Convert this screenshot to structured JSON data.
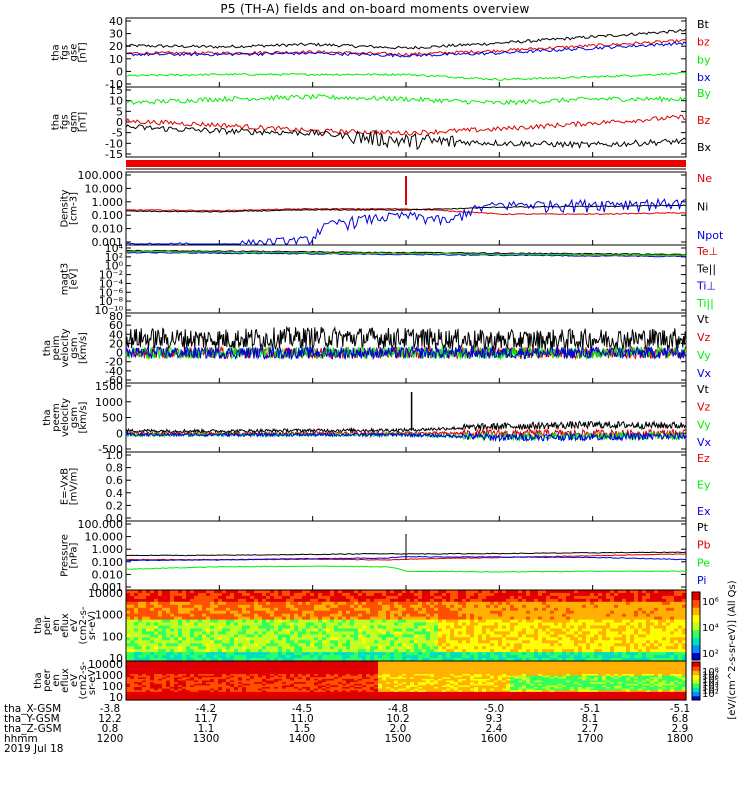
{
  "title": "P5 (TH-A) fields and on-board moments overview",
  "colors": {
    "black": "#000000",
    "red": "#dd0000",
    "green": "#00ee00",
    "blue": "#0000dd",
    "redflag": "#ee0000"
  },
  "chart_data": [
    {
      "type": "line",
      "id": "fgs-gse",
      "ylabel": [
        "tha",
        "fgs",
        "gse",
        "[nT]"
      ],
      "yticks": [
        "40",
        "30",
        "20",
        "10",
        "0",
        "-10"
      ],
      "ylim": [
        -13,
        42
      ],
      "x": [
        1200,
        1300,
        1400,
        1500,
        1600,
        1700,
        1800
      ],
      "series": [
        {
          "name": "Bt",
          "color": "black",
          "values": [
            20,
            19,
            21,
            18,
            22,
            27,
            32
          ]
        },
        {
          "name": "bz",
          "color": "red",
          "values": [
            14,
            14,
            15,
            13,
            16,
            20,
            24
          ]
        },
        {
          "name": "by",
          "color": "green",
          "values": [
            -4,
            -3,
            -3,
            -3,
            -7,
            -5,
            -2
          ]
        },
        {
          "name": "bx",
          "color": "blue",
          "values": [
            13,
            13,
            14,
            12,
            14,
            18,
            22
          ]
        }
      ]
    },
    {
      "type": "line",
      "id": "fgs-gsm",
      "ylabel": [
        "tha",
        "fgs",
        "gsm",
        "[nT]"
      ],
      "yticks": [
        "15",
        "10",
        "5",
        "0",
        "-5",
        "-10",
        "-15"
      ],
      "ylim": [
        -18,
        17
      ],
      "x": [
        1200,
        1300,
        1400,
        1500,
        1600,
        1700,
        1800
      ],
      "series": [
        {
          "name": "By",
          "color": "green",
          "values": [
            9,
            11,
            12,
            11,
            9,
            11,
            11
          ]
        },
        {
          "name": "Bz",
          "color": "red",
          "values": [
            0,
            -2,
            -5,
            -6,
            -4,
            -1,
            2
          ]
        },
        {
          "name": "Bx",
          "color": "black",
          "values": [
            -3,
            -5,
            -6,
            -10,
            -11,
            -12,
            -10
          ]
        }
      ]
    },
    {
      "type": "line",
      "id": "density",
      "ylog": true,
      "ylabel": [
        "Density",
        "[cm-3]"
      ],
      "yticks": [
        "100.000",
        "10.000",
        "1.000",
        "0.100",
        "0.010",
        "0.001"
      ],
      "x": [
        1200,
        1300,
        1400,
        1500,
        1550,
        1600,
        1700,
        1800
      ],
      "series": [
        {
          "name": "Ne",
          "color": "red",
          "values": [
            0.25,
            0.22,
            0.3,
            0.3,
            0.2,
            0.12,
            0.12,
            0.15
          ]
        },
        {
          "name": "Ni",
          "color": "black",
          "values": [
            0.2,
            0.18,
            0.25,
            0.25,
            0.3,
            0.4,
            0.45,
            0.55
          ]
        },
        {
          "name": "Npot",
          "color": "blue",
          "values": [
            0.0005,
            0.0005,
            0.0015,
            0.1,
            0.03,
            0.6,
            0.8,
            0.9
          ]
        }
      ]
    },
    {
      "type": "line",
      "id": "temperature",
      "ylog": true,
      "ylabel": [
        "magt3",
        "[eV]"
      ],
      "yticks": [
        "10⁴",
        "10²",
        "10⁰",
        "10⁻²",
        "10⁻⁴",
        "10⁻⁶",
        "10⁻⁸",
        "10⁻¹⁰"
      ],
      "series": [
        {
          "name": "Te⊥",
          "color": "red"
        },
        {
          "name": "Te||",
          "color": "black"
        },
        {
          "name": "Ti⊥",
          "color": "blue"
        },
        {
          "name": "Ti||",
          "color": "green"
        }
      ]
    },
    {
      "type": "line",
      "id": "peim-velocity",
      "ylabel": [
        "tha",
        "peim",
        "velocity",
        "gsm",
        "[km/s]"
      ],
      "yticks": [
        "80",
        "60",
        "40",
        "20",
        "0",
        "-20",
        "-40",
        "-60"
      ],
      "ylim": [
        -62,
        82
      ],
      "series": [
        {
          "name": "Vt",
          "color": "black",
          "values": [
            30,
            28,
            32,
            30,
            25,
            28,
            30
          ]
        },
        {
          "name": "Vz",
          "color": "red",
          "values": [
            0,
            0,
            0,
            0,
            0,
            0,
            0
          ]
        },
        {
          "name": "Vy",
          "color": "green",
          "values": [
            0,
            0,
            0,
            0,
            0,
            0,
            0
          ]
        },
        {
          "name": "Vx",
          "color": "blue",
          "values": [
            0,
            0,
            0,
            0,
            0,
            0,
            0
          ]
        }
      ]
    },
    {
      "type": "line",
      "id": "peem-velocity",
      "ylabel": [
        "tha",
        "peem",
        "velocity",
        "gsm",
        "[km/s]"
      ],
      "yticks": [
        "1500",
        "1000",
        "500",
        "0",
        "-500"
      ],
      "ylim": [
        -520,
        1560
      ],
      "series": [
        {
          "name": "Vt",
          "color": "black",
          "values": [
            120,
            110,
            130,
            140,
            250,
            300,
            280
          ]
        },
        {
          "name": "Vz",
          "color": "red",
          "values": [
            40,
            30,
            40,
            40,
            40,
            40,
            50
          ]
        },
        {
          "name": "Vy",
          "color": "green",
          "values": [
            0,
            0,
            0,
            0,
            -60,
            -40,
            -30
          ]
        },
        {
          "name": "Vx",
          "color": "blue",
          "values": [
            0,
            0,
            0,
            0,
            -80,
            -60,
            -50
          ]
        }
      ]
    },
    {
      "type": "line",
      "id": "efield",
      "ylabel": [
        "E=-VxB",
        "[mV/m]"
      ],
      "yticks": [
        "1.0",
        "0.8",
        "0.6",
        "0.4",
        "0.2",
        "0.0"
      ],
      "ylim": [
        0,
        1.05
      ],
      "series": [
        {
          "name": "Ez",
          "color": "red"
        },
        {
          "name": "Ey",
          "color": "green"
        },
        {
          "name": "Ex",
          "color": "blue"
        }
      ]
    },
    {
      "type": "line",
      "id": "pressure",
      "ylog": true,
      "ylabel": [
        "Pressure",
        "[nPa]"
      ],
      "yticks": [
        "100.000",
        "10.000",
        "1.000",
        "0.100",
        "0.010",
        "0.001"
      ],
      "x": [
        1200,
        1300,
        1400,
        1480,
        1500,
        1600,
        1700,
        1800
      ],
      "series": [
        {
          "name": "Pt",
          "color": "black",
          "values": [
            0.32,
            0.33,
            0.38,
            0.45,
            0.42,
            0.45,
            0.52,
            0.58
          ]
        },
        {
          "name": "Pb",
          "color": "red",
          "values": [
            0.15,
            0.15,
            0.16,
            0.14,
            0.16,
            0.22,
            0.3,
            0.42
          ]
        },
        {
          "name": "Pe",
          "color": "green",
          "values": [
            0.025,
            0.04,
            0.045,
            0.04,
            0.018,
            0.016,
            0.018,
            0.018
          ]
        },
        {
          "name": "Pi",
          "color": "blue",
          "values": [
            0.13,
            0.14,
            0.18,
            0.2,
            0.25,
            0.24,
            0.22,
            0.15
          ]
        }
      ]
    },
    {
      "type": "heatmap",
      "id": "peir-spectrogram",
      "ylabel": [
        "tha",
        "peir",
        "en",
        "eflux",
        "eV",
        "(cm2-s-",
        "sr-eV)"
      ],
      "yticks": [
        "10000",
        "1000",
        "100",
        "10"
      ]
    },
    {
      "type": "heatmap",
      "id": "peer-spectrogram",
      "ylabel": [
        "tha",
        "peer",
        "en",
        "eflux",
        "eV",
        "(cm2-s-",
        "sr-eV)"
      ],
      "yticks": [
        "10000",
        "1000",
        "100",
        "10"
      ]
    }
  ],
  "colorbars": [
    {
      "ticks": [
        "10⁶",
        "10⁴",
        "10²"
      ]
    },
    {
      "ticks": [
        "10⁸",
        "10⁷",
        "10⁶",
        "10⁵",
        "10⁴",
        "10³",
        "10²"
      ]
    }
  ],
  "colorbar_label": "[eV/(cm^2-s-sr-eV)] (All Qs)",
  "xaxis": {
    "row_labels": [
      "tha_X-GSM",
      "tha_Y-GSM",
      "tha_Z-GSM",
      "hhmm",
      "2019 Jul 18"
    ],
    "columns": [
      {
        "x": "-3.8",
        "y": "12.2",
        "z": "0.8",
        "hhmm": "1200"
      },
      {
        "x": "-4.2",
        "y": "11.7",
        "z": "1.1",
        "hhmm": "1300"
      },
      {
        "x": "-4.5",
        "y": "11.0",
        "z": "1.5",
        "hhmm": "1400"
      },
      {
        "x": "-4.8",
        "y": "10.2",
        "z": "2.0",
        "hhmm": "1500"
      },
      {
        "x": "-5.0",
        "y": "9.3",
        "z": "2.4",
        "hhmm": "1600"
      },
      {
        "x": "-5.1",
        "y": "8.1",
        "z": "2.7",
        "hhmm": "1700"
      },
      {
        "x": "-5.1",
        "y": "6.8",
        "z": "2.9",
        "hhmm": "1800"
      }
    ]
  }
}
